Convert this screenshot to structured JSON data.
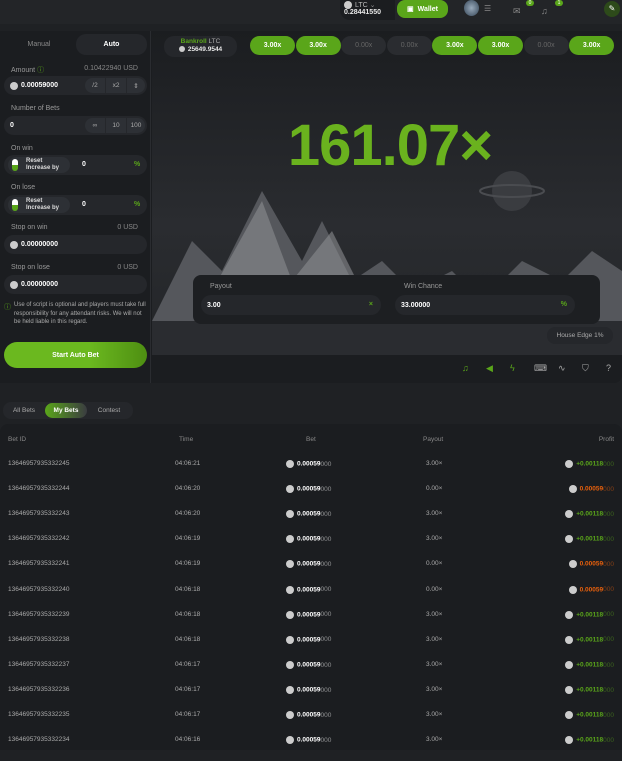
{
  "header": {
    "currency": "LTC",
    "balance": "0.28441550",
    "wallet_label": "Wallet",
    "mail_badge": "0",
    "bell_badge": "1"
  },
  "mode_tabs": {
    "manual": "Manual",
    "auto": "Auto",
    "active": "Auto"
  },
  "bankroll": {
    "label": "Bankroll",
    "currency": "LTC",
    "value": "25649.9544"
  },
  "recent_results": [
    {
      "v": "3.00x",
      "win": true
    },
    {
      "v": "3.00x",
      "win": true
    },
    {
      "v": "0.00x",
      "win": false
    },
    {
      "v": "0.00x",
      "win": false
    },
    {
      "v": "3.00x",
      "win": true
    },
    {
      "v": "3.00x",
      "win": true
    },
    {
      "v": "0.00x",
      "win": false
    },
    {
      "v": "3.00x",
      "win": true
    }
  ],
  "form": {
    "amount_label": "Amount",
    "amount_usd": "0.10422940 USD",
    "amount": "0.00059000",
    "half": "/2",
    "double": "x2",
    "bets_label": "Number of Bets",
    "bets": "0",
    "inf": "∞",
    "ten": "10",
    "hundred": "100",
    "on_win_label": "On win",
    "on_lose_label": "On lose",
    "reset": "Reset",
    "increase_by": "Increase by",
    "win_value": "0",
    "lose_value": "0",
    "pct": "%",
    "stop_win_label": "Stop on win",
    "stop_win_usd": "0 USD",
    "stop_win": "0.00000000",
    "stop_lose_label": "Stop on lose",
    "stop_lose_usd": "0 USD",
    "stop_lose": "0.00000000",
    "disclaimer": "Use of script is optional and players must take full responsibility for any attendant risks. We will not be held liable in this regard.",
    "start_label": "Start Auto Bet"
  },
  "game": {
    "multiplier": "161.07×",
    "payout_label": "Payout",
    "payout": "3.00",
    "payout_unit": "×",
    "chance_label": "Win Chance",
    "chance": "33.00000",
    "chance_unit": "%",
    "house_edge": "House Edge 1%"
  },
  "accent": "#5aa61a",
  "loss_color": "#e8600c",
  "bets_tabs": {
    "all": "All Bets",
    "my": "My Bets",
    "contest": "Contest",
    "active": "My Bets"
  },
  "table": {
    "headers": {
      "id": "Bet ID",
      "time": "Time",
      "bet": "Bet",
      "payout": "Payout",
      "profit": "Profit"
    },
    "rows": [
      {
        "id": "13646957935332245",
        "time": "04:06:21",
        "bet": "0.00059",
        "bet_tail": "000",
        "payout": "3.00×",
        "profit": "+0.00118",
        "profit_tail": "000",
        "win": true
      },
      {
        "id": "13646957935332244",
        "time": "04:06:20",
        "bet": "0.00059",
        "bet_tail": "000",
        "payout": "0.00×",
        "profit": "0.00059",
        "profit_tail": "000",
        "win": false
      },
      {
        "id": "13646957935332243",
        "time": "04:06:20",
        "bet": "0.00059",
        "bet_tail": "000",
        "payout": "3.00×",
        "profit": "+0.00118",
        "profit_tail": "000",
        "win": true
      },
      {
        "id": "13646957935332242",
        "time": "04:06:19",
        "bet": "0.00059",
        "bet_tail": "000",
        "payout": "3.00×",
        "profit": "+0.00118",
        "profit_tail": "000",
        "win": true
      },
      {
        "id": "13646957935332241",
        "time": "04:06:19",
        "bet": "0.00059",
        "bet_tail": "000",
        "payout": "0.00×",
        "profit": "0.00059",
        "profit_tail": "000",
        "win": false
      },
      {
        "id": "13646957935332240",
        "time": "04:06:18",
        "bet": "0.00059",
        "bet_tail": "000",
        "payout": "0.00×",
        "profit": "0.00059",
        "profit_tail": "000",
        "win": false
      },
      {
        "id": "13646957935332239",
        "time": "04:06:18",
        "bet": "0.00059",
        "bet_tail": "000",
        "payout": "3.00×",
        "profit": "+0.00118",
        "profit_tail": "000",
        "win": true
      },
      {
        "id": "13646957935332238",
        "time": "04:06:18",
        "bet": "0.00059",
        "bet_tail": "000",
        "payout": "3.00×",
        "profit": "+0.00118",
        "profit_tail": "000",
        "win": true
      },
      {
        "id": "13646957935332237",
        "time": "04:06:17",
        "bet": "0.00059",
        "bet_tail": "000",
        "payout": "3.00×",
        "profit": "+0.00118",
        "profit_tail": "000",
        "win": true
      },
      {
        "id": "13646957935332236",
        "time": "04:06:17",
        "bet": "0.00059",
        "bet_tail": "000",
        "payout": "3.00×",
        "profit": "+0.00118",
        "profit_tail": "000",
        "win": true
      },
      {
        "id": "13646957935332235",
        "time": "04:06:17",
        "bet": "0.00059",
        "bet_tail": "000",
        "payout": "3.00×",
        "profit": "+0.00118",
        "profit_tail": "000",
        "win": true
      },
      {
        "id": "13646957935332234",
        "time": "04:06:16",
        "bet": "0.00059",
        "bet_tail": "000",
        "payout": "3.00×",
        "profit": "+0.00118",
        "profit_tail": "000",
        "win": true
      }
    ]
  }
}
